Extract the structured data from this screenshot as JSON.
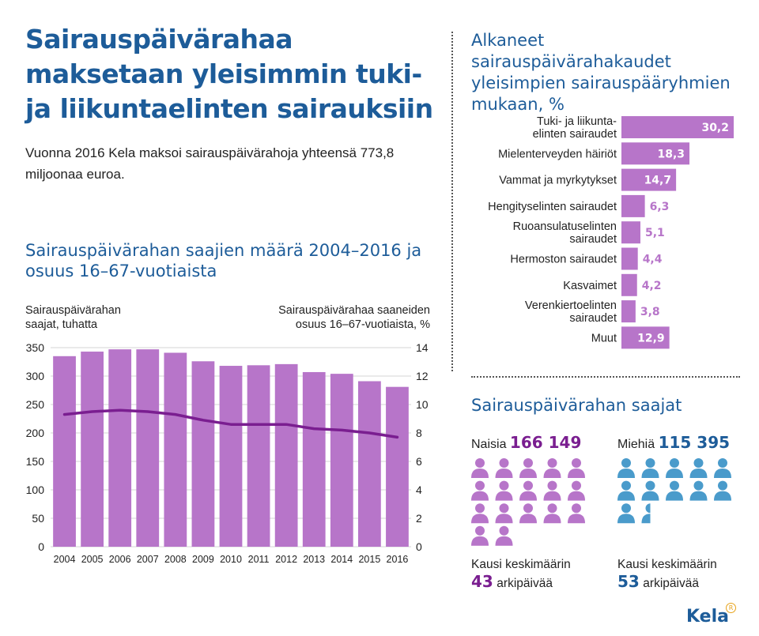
{
  "header": {
    "title": "Sairauspäivärahaa maksetaan yleisimmin tuki- ja liikuntaelinten sairauksiin",
    "lead": "Vuonna 2016 Kela maksoi sairauspäivärahoja yhteensä 773,8 miljoonaa euroa."
  },
  "colors": {
    "purple": "#b775c9",
    "line": "#7a1e90",
    "title_blue": "#1d5c99",
    "male_icon": "#4a9bcb",
    "female_icon": "#b775c9"
  },
  "chart_data": [
    {
      "type": "bar",
      "title": "Sairauspäivärahan saajien määrä 2004–2016 ja osuus 16–67-vuotiaista",
      "ylabel": "Sairauspäivärahan saajat, tuhatta",
      "y2label": "Sairauspäivärahaa saaneiden osuus 16–67-vuotiaista, %",
      "categories": [
        "2004",
        "2005",
        "2006",
        "2007",
        "2008",
        "2009",
        "2010",
        "2011",
        "2012",
        "2013",
        "2014",
        "2015",
        "2016"
      ],
      "series": [
        {
          "name": "Sairauspäivärahan saajat, tuhatta",
          "axis": "left",
          "kind": "bar",
          "values": [
            335,
            343,
            347,
            347,
            341,
            326,
            318,
            319,
            321,
            307,
            304,
            291,
            281
          ]
        },
        {
          "name": "Sairauspäivärahaa saaneiden osuus 16–67-vuotiaista, %",
          "axis": "right",
          "kind": "line",
          "values": [
            9.3,
            9.5,
            9.6,
            9.5,
            9.3,
            8.9,
            8.6,
            8.6,
            8.6,
            8.3,
            8.2,
            8.0,
            7.7
          ]
        }
      ],
      "ylim": [
        0,
        350
      ],
      "yticks": [
        "0",
        "50",
        "100",
        "150",
        "200",
        "250",
        "300",
        "350"
      ],
      "y2lim": [
        0,
        14
      ],
      "y2ticks": [
        "0",
        "2",
        "4",
        "6",
        "8",
        "10",
        "12",
        "14"
      ],
      "grid": true
    },
    {
      "type": "bar",
      "orientation": "horizontal",
      "title": "Alkaneet sairauspäivärahakaudet yleisimpien sairauspääryhmien mukaan, %",
      "categories": [
        "Tuki- ja liikunta-elinten sairaudet",
        "Mielenterveyden häiriöt",
        "Vammat ja myrkytykset",
        "Hengityselinten sairaudet",
        "Ruoansulatuselinten sairaudet",
        "Hermoston sairaudet",
        "Kasvaimet",
        "Verenkiertoelinten sairaudet",
        "Muut"
      ],
      "category_lines": [
        [
          "Tuki- ja liikunta-",
          "elinten sairaudet"
        ],
        [
          "Mielenterveyden häiriöt"
        ],
        [
          "Vammat ja myrkytykset"
        ],
        [
          "Hengityselinten sairaudet"
        ],
        [
          "Ruoansulatuselinten",
          "sairaudet"
        ],
        [
          "Hermoston sairaudet"
        ],
        [
          "Kasvaimet"
        ],
        [
          "Verenkiertoelinten",
          "sairaudet"
        ],
        [
          "Muut"
        ]
      ],
      "values": [
        30.2,
        18.3,
        14.7,
        6.3,
        5.1,
        4.4,
        4.2,
        3.8,
        12.9
      ],
      "value_labels": [
        "30,2",
        "18,3",
        "14,7",
        "6,3",
        "5,1",
        "4,4",
        "4,2",
        "3,8",
        "12,9"
      ],
      "xlim": [
        0,
        30.2
      ]
    }
  ],
  "recipients": {
    "title": "Sairauspäivärahan saajat",
    "women": {
      "label": "Naisia",
      "count": "166 149",
      "icon": "person-icon",
      "icon_count": 17,
      "period_label": "Kausi keskimäärin",
      "days": "43",
      "days_label": "arkipäivää"
    },
    "men": {
      "label": "Miehiä",
      "count": "115 395",
      "icon": "person-icon",
      "icon_count": 11.5,
      "period_label": "Kausi keskimäärin",
      "days": "53",
      "days_label": "arkipäivää"
    }
  },
  "logo": {
    "text": "Kela",
    "mark": "R"
  }
}
